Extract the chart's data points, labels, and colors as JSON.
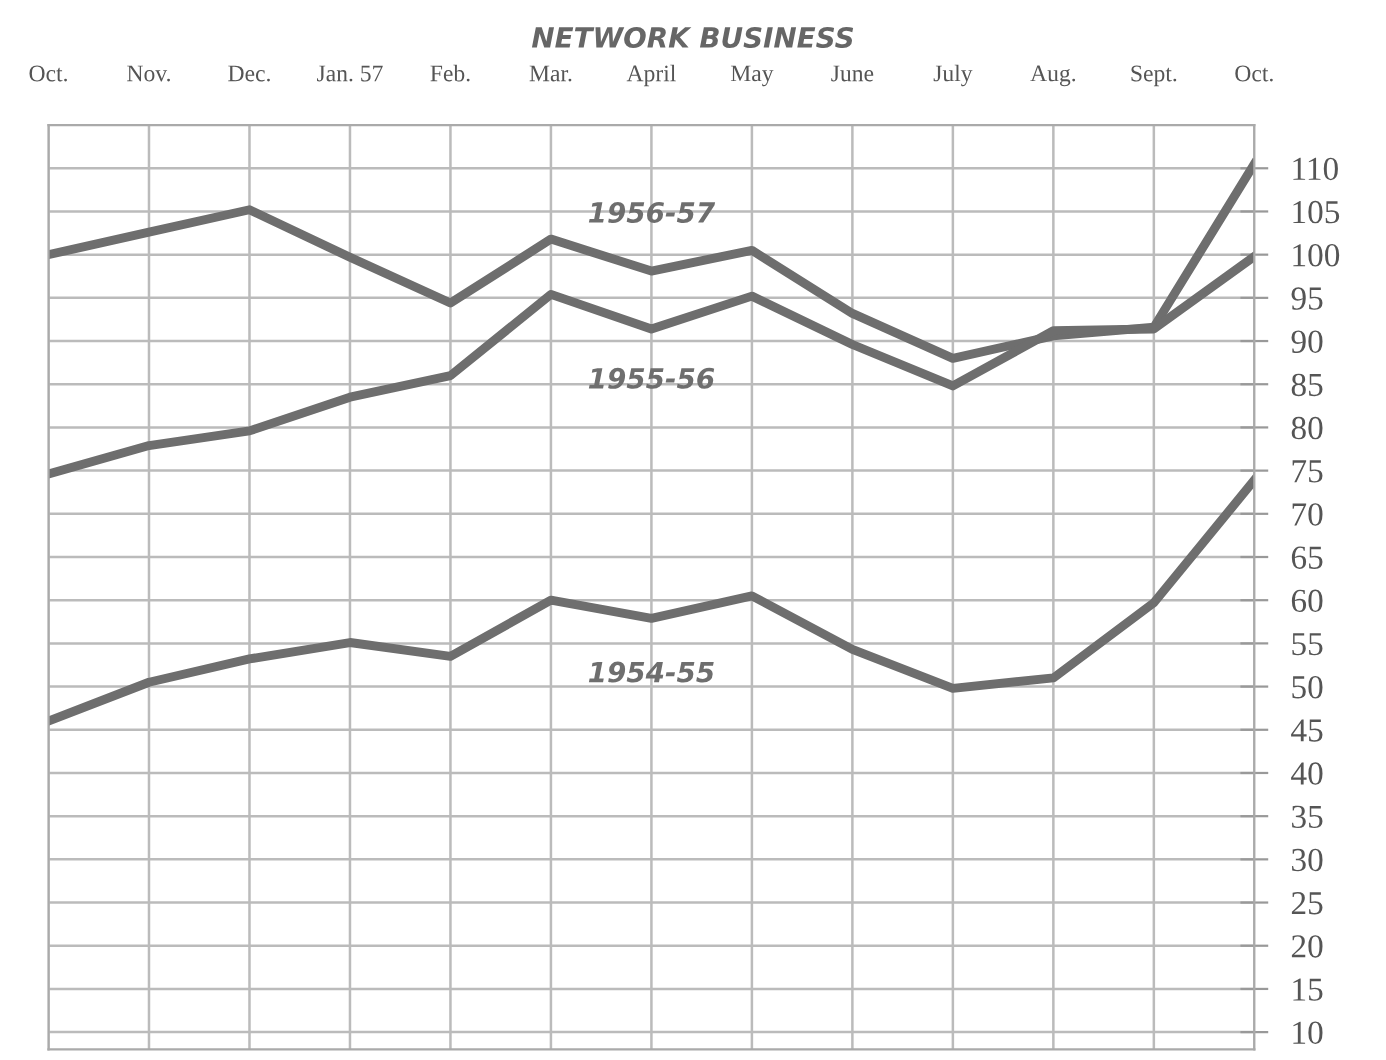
{
  "chart_data": {
    "type": "line",
    "title": "NETWORK BUSINESS",
    "categories": [
      "Oct.",
      "Nov.",
      "Dec.",
      "Jan. 57",
      "Feb.",
      "Mar.",
      "April",
      "May",
      "June",
      "July",
      "Aug.",
      "Sept.",
      "Oct."
    ],
    "series": [
      {
        "name": "1956-57",
        "color": "#6e6e6e",
        "values": [
          100,
          102.6,
          105.2,
          99.7,
          94.4,
          101.8,
          98.1,
          100.5,
          93.2,
          88,
          90.6,
          91.6,
          110.5
        ]
      },
      {
        "name": "1955-56",
        "color": "#6e6e6e",
        "values": [
          74.6,
          77.9,
          79.6,
          83.5,
          86,
          95.4,
          91.4,
          95.2,
          89.6,
          84.8,
          91.2,
          91.4,
          99.8
        ]
      },
      {
        "name": "1954-55",
        "color": "#6e6e6e",
        "values": [
          46,
          50.5,
          53.2,
          55.1,
          53.5,
          60,
          57.9,
          60.5,
          54.3,
          49.8,
          51,
          59.7,
          73.9
        ]
      }
    ],
    "ylim": [
      8,
      115
    ],
    "yticks": [
      10,
      15,
      20,
      25,
      30,
      35,
      40,
      45,
      50,
      55,
      60,
      65,
      70,
      75,
      80,
      85,
      90,
      95,
      100,
      105,
      110
    ],
    "grid": true,
    "legend": false,
    "marker": "none",
    "line_style": "solid"
  }
}
